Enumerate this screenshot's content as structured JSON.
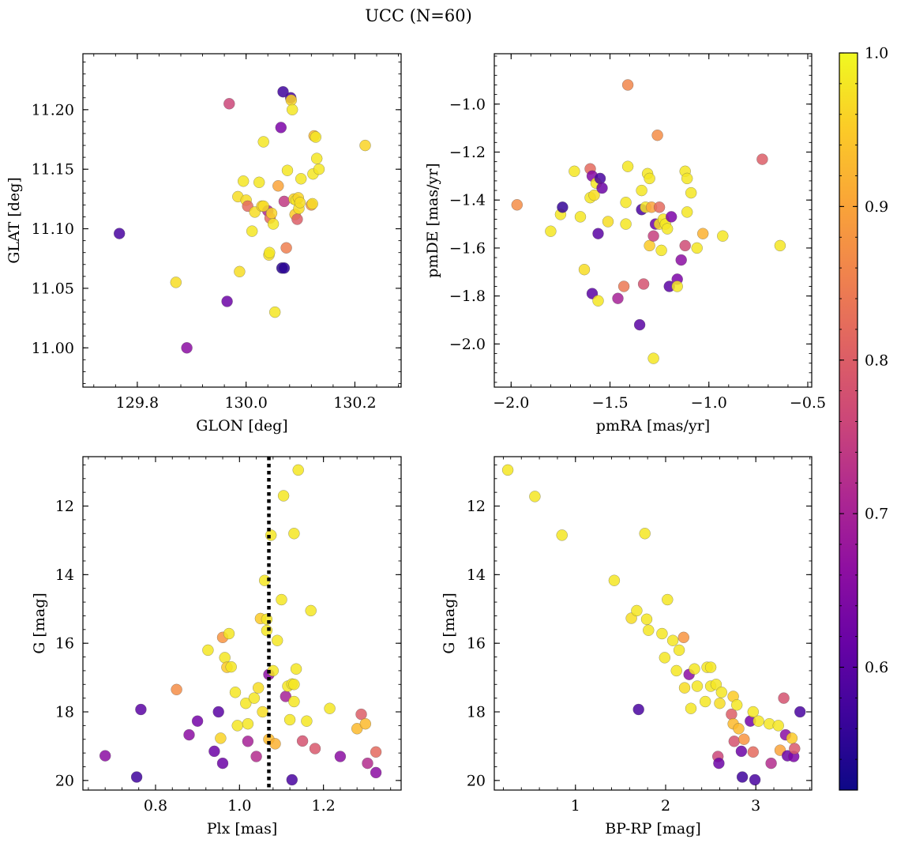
{
  "figure": {
    "title": "UCC (N=60)"
  },
  "colorbar": {
    "vmin": 0.52,
    "vmax": 1.0,
    "ticks": [
      0.6,
      0.7,
      0.8,
      0.9,
      1.0
    ],
    "tick_labels": [
      "0.6",
      "0.7",
      "0.8",
      "0.9",
      "1.0"
    ],
    "colormap": "plasma"
  },
  "chart_data": [
    {
      "type": "scatter",
      "name": "glon-glat",
      "xlabel": "GLON [deg]",
      "ylabel": "GLAT [deg]",
      "xlim": [
        129.7,
        130.285
      ],
      "ylim": [
        10.967,
        11.247
      ],
      "xticks": [
        129.8,
        130.0,
        130.2
      ],
      "xtick_labels": [
        "129.8",
        "130.0",
        "130.2"
      ],
      "yticks": [
        11.0,
        11.05,
        11.1,
        11.15,
        11.2
      ],
      "ytick_labels": [
        "11.00",
        "11.05",
        "11.10",
        "11.15",
        "11.20"
      ],
      "y_inverted": false,
      "points": [
        [
          129.767,
          11.096,
          0.58
        ],
        [
          129.871,
          11.055,
          0.97
        ],
        [
          129.891,
          11.0,
          0.66
        ],
        [
          129.965,
          11.039,
          0.62
        ],
        [
          129.969,
          11.205,
          0.76
        ],
        [
          129.985,
          11.127,
          0.97
        ],
        [
          129.988,
          11.064,
          0.97
        ],
        [
          129.995,
          11.14,
          0.98
        ],
        [
          130.0,
          11.124,
          0.97
        ],
        [
          130.003,
          11.119,
          0.82
        ],
        [
          130.011,
          11.098,
          0.98
        ],
        [
          130.016,
          11.114,
          0.97
        ],
        [
          130.024,
          11.139,
          0.98
        ],
        [
          130.029,
          11.119,
          0.96
        ],
        [
          130.032,
          11.173,
          0.98
        ],
        [
          130.04,
          11.115,
          0.71
        ],
        [
          130.042,
          11.078,
          0.97
        ],
        [
          130.043,
          11.08,
          0.98
        ],
        [
          130.044,
          11.109,
          0.82
        ],
        [
          130.047,
          11.113,
          0.96
        ],
        [
          130.05,
          11.104,
          0.98
        ],
        [
          130.053,
          11.03,
          0.98
        ],
        [
          130.059,
          11.136,
          0.9
        ],
        [
          130.064,
          11.185,
          0.64
        ],
        [
          130.066,
          11.067,
          0.55
        ],
        [
          130.068,
          11.215,
          0.57
        ],
        [
          130.07,
          11.067,
          0.55
        ],
        [
          130.07,
          11.123,
          0.74
        ],
        [
          130.074,
          11.084,
          0.85
        ],
        [
          130.076,
          11.149,
          0.98
        ],
        [
          130.082,
          11.21,
          0.58
        ],
        [
          130.083,
          11.208,
          0.96
        ],
        [
          130.085,
          11.2,
          0.98
        ],
        [
          130.088,
          11.125,
          0.96
        ],
        [
          130.09,
          11.112,
          0.95
        ],
        [
          130.092,
          11.124,
          0.98
        ],
        [
          130.094,
          11.108,
          0.8
        ],
        [
          130.096,
          11.126,
          0.96
        ],
        [
          130.097,
          11.117,
          0.97
        ],
        [
          130.099,
          11.122,
          0.97
        ],
        [
          130.101,
          11.142,
          0.98
        ],
        [
          130.12,
          11.12,
          0.88
        ],
        [
          130.122,
          11.121,
          0.97
        ],
        [
          130.123,
          11.146,
          0.98
        ],
        [
          130.125,
          11.178,
          0.93
        ],
        [
          130.128,
          11.177,
          0.98
        ],
        [
          130.13,
          11.159,
          0.98
        ],
        [
          130.134,
          11.15,
          0.98
        ],
        [
          130.219,
          11.17,
          0.96
        ],
        [
          130.032,
          11.119,
          0.97
        ]
      ]
    },
    {
      "type": "scatter",
      "name": "pmra-pmde",
      "xlabel": "pmRA [mas/yr]",
      "ylabel": "pmDE [mas/yr]",
      "xlim": [
        -2.085,
        -0.48
      ],
      "ylim": [
        -2.18,
        -0.79
      ],
      "xticks": [
        -2.0,
        -1.5,
        -1.0,
        -0.5
      ],
      "xtick_labels": [
        "−2.0",
        "−1.5",
        "−1.0",
        "−0.5"
      ],
      "yticks": [
        -2.0,
        -1.8,
        -1.6,
        -1.4,
        -1.2,
        -1.0
      ],
      "ytick_labels": [
        "−2.0",
        "−1.8",
        "−1.6",
        "−1.4",
        "−1.2",
        "−1.0"
      ],
      "y_inverted": false,
      "points": [
        [
          -1.97,
          -1.42,
          0.87
        ],
        [
          -1.8,
          -1.53,
          0.98
        ],
        [
          -1.75,
          -1.46,
          0.98
        ],
        [
          -1.74,
          -1.43,
          0.56
        ],
        [
          -1.68,
          -1.28,
          0.98
        ],
        [
          -1.65,
          -1.47,
          0.98
        ],
        [
          -1.63,
          -1.69,
          0.97
        ],
        [
          -1.6,
          -1.27,
          0.82
        ],
        [
          -1.6,
          -1.39,
          0.98
        ],
        [
          -1.59,
          -1.79,
          0.6
        ],
        [
          -1.59,
          -1.3,
          0.65
        ],
        [
          -1.58,
          -1.38,
          0.97
        ],
        [
          -1.57,
          -1.33,
          0.98
        ],
        [
          -1.56,
          -1.54,
          0.6
        ],
        [
          -1.56,
          -1.82,
          0.98
        ],
        [
          -1.55,
          -1.31,
          0.58
        ],
        [
          -1.54,
          -1.35,
          0.62
        ],
        [
          -1.51,
          -1.49,
          0.97
        ],
        [
          -1.46,
          -1.81,
          0.7
        ],
        [
          -1.43,
          -1.76,
          0.84
        ],
        [
          -1.42,
          -1.41,
          0.98
        ],
        [
          -1.42,
          -1.5,
          0.98
        ],
        [
          -1.41,
          -1.26,
          0.98
        ],
        [
          -1.41,
          -0.92,
          0.86
        ],
        [
          -1.35,
          -1.92,
          0.6
        ],
        [
          -1.34,
          -1.36,
          0.98
        ],
        [
          -1.34,
          -1.44,
          0.58
        ],
        [
          -1.33,
          -1.75,
          0.78
        ],
        [
          -1.32,
          -1.43,
          0.98
        ],
        [
          -1.31,
          -1.29,
          0.98
        ],
        [
          -1.3,
          -1.31,
          0.98
        ],
        [
          -1.3,
          -1.59,
          0.95
        ],
        [
          -1.29,
          -1.43,
          0.9
        ],
        [
          -1.28,
          -2.06,
          0.98
        ],
        [
          -1.28,
          -1.55,
          0.75
        ],
        [
          -1.27,
          -1.5,
          0.62
        ],
        [
          -1.26,
          -1.13,
          0.87
        ],
        [
          -1.25,
          -1.43,
          0.82
        ],
        [
          -1.25,
          -1.5,
          0.97
        ],
        [
          -1.24,
          -1.61,
          0.98
        ],
        [
          -1.23,
          -1.48,
          0.98
        ],
        [
          -1.22,
          -1.5,
          0.98
        ],
        [
          -1.21,
          -1.52,
          0.98
        ],
        [
          -1.2,
          -1.76,
          0.6
        ],
        [
          -1.19,
          -1.47,
          0.64
        ],
        [
          -1.16,
          -1.73,
          0.64
        ],
        [
          -1.16,
          -1.76,
          0.98
        ],
        [
          -1.14,
          -1.65,
          0.66
        ],
        [
          -1.12,
          -1.59,
          0.77
        ],
        [
          -1.12,
          -1.28,
          0.98
        ],
        [
          -1.11,
          -1.31,
          0.98
        ],
        [
          -1.11,
          -1.45,
          0.98
        ],
        [
          -1.09,
          -1.37,
          0.98
        ],
        [
          -1.06,
          -1.6,
          0.98
        ],
        [
          -1.03,
          -1.54,
          0.92
        ],
        [
          -0.93,
          -1.55,
          0.98
        ],
        [
          -0.73,
          -1.23,
          0.8
        ],
        [
          -0.64,
          -1.59,
          0.98
        ]
      ]
    },
    {
      "type": "scatter",
      "name": "plx-g",
      "xlabel": "Plx [mas]",
      "ylabel": "G [mag]",
      "xlim": [
        0.627,
        1.385
      ],
      "ylim": [
        10.56,
        20.28
      ],
      "xticks": [
        0.8,
        1.0,
        1.2
      ],
      "xtick_labels": [
        "0.8",
        "1.0",
        "1.2"
      ],
      "yticks": [
        12,
        14,
        16,
        18,
        20
      ],
      "ytick_labels": [
        "12",
        "14",
        "16",
        "18",
        "20"
      ],
      "y_inverted": true,
      "vline": {
        "x": 1.07,
        "style": "dotted"
      },
      "points": [
        [
          0.68,
          19.28,
          0.66
        ],
        [
          0.755,
          19.9,
          0.57
        ],
        [
          0.765,
          17.93,
          0.6
        ],
        [
          0.85,
          17.35,
          0.87
        ],
        [
          0.88,
          18.67,
          0.66
        ],
        [
          0.9,
          18.27,
          0.63
        ],
        [
          0.925,
          16.2,
          0.98
        ],
        [
          0.94,
          19.15,
          0.62
        ],
        [
          0.95,
          18.0,
          0.6
        ],
        [
          0.955,
          18.77,
          0.96
        ],
        [
          0.96,
          19.5,
          0.62
        ],
        [
          0.96,
          15.83,
          0.88
        ],
        [
          0.965,
          16.42,
          0.98
        ],
        [
          0.97,
          16.7,
          0.95
        ],
        [
          0.975,
          15.72,
          0.98
        ],
        [
          0.98,
          16.69,
          0.98
        ],
        [
          0.99,
          17.43,
          0.98
        ],
        [
          0.995,
          18.4,
          0.98
        ],
        [
          1.015,
          17.75,
          0.98
        ],
        [
          1.02,
          18.35,
          0.98
        ],
        [
          1.02,
          18.86,
          0.7
        ],
        [
          1.035,
          17.6,
          0.98
        ],
        [
          1.04,
          19.3,
          0.72
        ],
        [
          1.045,
          17.3,
          0.97
        ],
        [
          1.05,
          15.28,
          0.95
        ],
        [
          1.055,
          18.0,
          0.97
        ],
        [
          1.06,
          14.17,
          0.98
        ],
        [
          1.065,
          15.63,
          0.98
        ],
        [
          1.065,
          15.3,
          0.98
        ],
        [
          1.07,
          16.91,
          0.66
        ],
        [
          1.07,
          18.8,
          0.93
        ],
        [
          1.075,
          12.85,
          0.98
        ],
        [
          1.08,
          16.8,
          0.98
        ],
        [
          1.085,
          18.93,
          0.92
        ],
        [
          1.09,
          15.92,
          0.98
        ],
        [
          1.1,
          14.73,
          0.98
        ],
        [
          1.105,
          11.7,
          0.98
        ],
        [
          1.11,
          17.55,
          0.7
        ],
        [
          1.115,
          17.25,
          0.98
        ],
        [
          1.12,
          18.23,
          0.98
        ],
        [
          1.125,
          17.19,
          0.98
        ],
        [
          1.125,
          19.98,
          0.58
        ],
        [
          1.13,
          17.7,
          0.98
        ],
        [
          1.13,
          17.2,
          0.98
        ],
        [
          1.13,
          12.8,
          0.98
        ],
        [
          1.135,
          16.75,
          0.98
        ],
        [
          1.14,
          10.95,
          0.98
        ],
        [
          1.15,
          18.85,
          0.78
        ],
        [
          1.16,
          18.27,
          0.98
        ],
        [
          1.17,
          15.05,
          0.98
        ],
        [
          1.18,
          19.07,
          0.79
        ],
        [
          1.215,
          17.9,
          0.98
        ],
        [
          1.24,
          19.3,
          0.66
        ],
        [
          1.28,
          18.49,
          0.93
        ],
        [
          1.29,
          18.07,
          0.8
        ],
        [
          1.3,
          18.35,
          0.93
        ],
        [
          1.305,
          19.5,
          0.72
        ],
        [
          1.325,
          19.17,
          0.82
        ],
        [
          1.325,
          19.77,
          0.66
        ]
      ]
    },
    {
      "type": "scatter",
      "name": "bprp-g",
      "xlabel": "BP-RP [mag]",
      "ylabel": "G [mag]",
      "xlim": [
        0.1,
        3.62
      ],
      "ylim": [
        10.56,
        20.28
      ],
      "xticks": [
        1,
        2,
        3
      ],
      "xtick_labels": [
        "1",
        "2",
        "3"
      ],
      "yticks": [
        12,
        14,
        16,
        18,
        20
      ],
      "ytick_labels": [
        "12",
        "14",
        "16",
        "18",
        "20"
      ],
      "y_inverted": true,
      "points": [
        [
          0.25,
          10.95,
          0.98
        ],
        [
          0.55,
          11.72,
          0.98
        ],
        [
          0.85,
          12.85,
          0.98
        ],
        [
          1.43,
          14.17,
          0.98
        ],
        [
          1.62,
          15.27,
          0.97
        ],
        [
          1.68,
          15.05,
          0.98
        ],
        [
          1.7,
          17.93,
          0.58
        ],
        [
          1.77,
          12.8,
          0.98
        ],
        [
          1.79,
          15.3,
          0.98
        ],
        [
          1.81,
          15.62,
          0.98
        ],
        [
          1.96,
          15.72,
          0.98
        ],
        [
          1.99,
          16.42,
          0.98
        ],
        [
          2.02,
          14.73,
          0.98
        ],
        [
          2.08,
          15.92,
          0.98
        ],
        [
          2.12,
          16.8,
          0.98
        ],
        [
          2.15,
          16.2,
          0.98
        ],
        [
          2.2,
          15.83,
          0.88
        ],
        [
          2.21,
          17.3,
          0.97
        ],
        [
          2.26,
          16.91,
          0.66
        ],
        [
          2.28,
          17.9,
          0.98
        ],
        [
          2.32,
          16.75,
          0.98
        ],
        [
          2.35,
          17.25,
          0.98
        ],
        [
          2.44,
          17.7,
          0.98
        ],
        [
          2.46,
          16.7,
          0.98
        ],
        [
          2.5,
          17.25,
          0.98
        ],
        [
          2.5,
          16.7,
          0.98
        ],
        [
          2.56,
          17.2,
          0.98
        ],
        [
          2.58,
          19.3,
          0.76
        ],
        [
          2.59,
          19.5,
          0.62
        ],
        [
          2.6,
          17.75,
          0.97
        ],
        [
          2.62,
          17.43,
          0.98
        ],
        [
          2.73,
          18.07,
          0.8
        ],
        [
          2.75,
          17.55,
          0.95
        ],
        [
          2.75,
          18.35,
          0.93
        ],
        [
          2.76,
          18.86,
          0.78
        ],
        [
          2.79,
          17.8,
          0.98
        ],
        [
          2.81,
          18.49,
          0.93
        ],
        [
          2.84,
          19.15,
          0.62
        ],
        [
          2.85,
          19.9,
          0.57
        ],
        [
          2.87,
          18.8,
          0.88
        ],
        [
          2.94,
          18.27,
          0.63
        ],
        [
          2.97,
          19.17,
          0.82
        ],
        [
          2.97,
          18.0,
          0.98
        ],
        [
          2.99,
          19.98,
          0.58
        ],
        [
          3.03,
          18.27,
          0.98
        ],
        [
          3.15,
          18.35,
          0.98
        ],
        [
          3.17,
          19.5,
          0.72
        ],
        [
          3.25,
          18.4,
          0.98
        ],
        [
          3.27,
          19.12,
          0.9
        ],
        [
          3.31,
          17.6,
          0.78
        ],
        [
          3.33,
          18.67,
          0.66
        ],
        [
          3.35,
          19.28,
          0.62
        ],
        [
          3.4,
          18.77,
          0.95
        ],
        [
          3.42,
          19.3,
          0.64
        ],
        [
          3.43,
          19.07,
          0.79
        ],
        [
          3.49,
          18.0,
          0.58
        ]
      ]
    }
  ]
}
